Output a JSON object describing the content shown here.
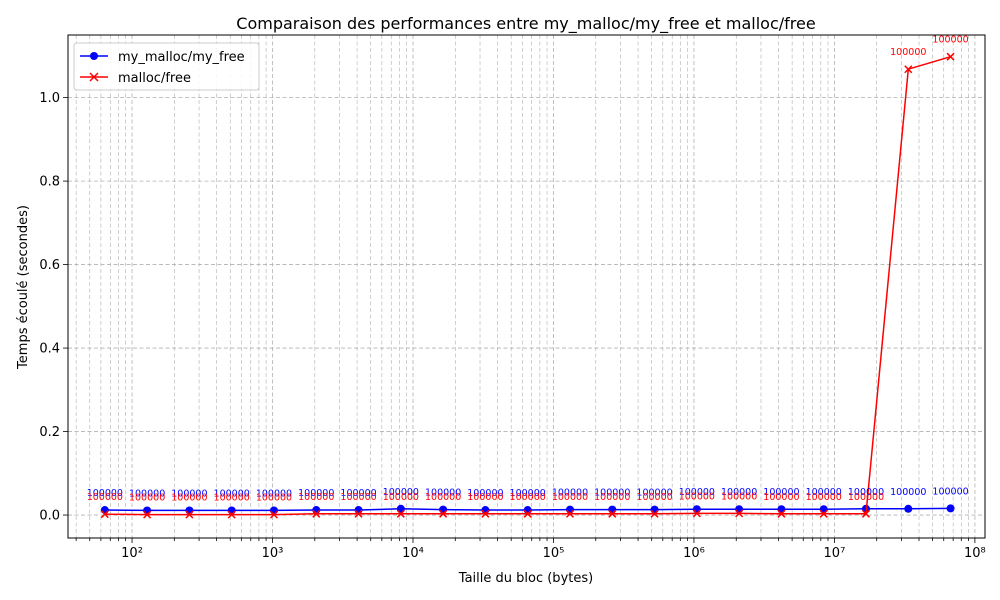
{
  "chart_data": {
    "type": "line",
    "title": "Comparaison des performances entre my_malloc/my_free et malloc/free",
    "xlabel": "Taille du bloc (bytes)",
    "ylabel": "Temps écoulé (secondes)",
    "xscale": "log",
    "xlim": [
      35,
      118000000
    ],
    "ylim": [
      -0.055,
      1.15
    ],
    "grid": "both (major and minor)",
    "legend_position": "upper-left",
    "x_tick_labels": [
      "10²",
      "10³",
      "10⁴",
      "10⁵",
      "10⁶",
      "10⁷",
      "10⁸"
    ],
    "y_tick_labels": [
      "0.0",
      "0.2",
      "0.4",
      "0.6",
      "0.8",
      "1.0"
    ],
    "x": [
      64,
      128,
      256,
      512,
      1024,
      2048,
      4096,
      8192,
      16384,
      32768,
      65536,
      131072,
      262144,
      524288,
      1048576,
      2097152,
      4194304,
      8388608,
      16777216,
      33554432,
      67108864
    ],
    "series": [
      {
        "name": "my_malloc/my_free",
        "color": "#0000ff",
        "marker": "circle",
        "values": [
          0.012,
          0.011,
          0.011,
          0.011,
          0.011,
          0.012,
          0.012,
          0.015,
          0.013,
          0.012,
          0.012,
          0.013,
          0.013,
          0.013,
          0.014,
          0.014,
          0.014,
          0.014,
          0.015,
          0.015,
          0.016
        ],
        "point_labels": [
          "100000",
          "100000",
          "100000",
          "100000",
          "100000",
          "100000",
          "100000",
          "100000",
          "100000",
          "100000",
          "100000",
          "100000",
          "100000",
          "100000",
          "100000",
          "100000",
          "100000",
          "100000",
          "100000",
          "100000",
          "100000"
        ]
      },
      {
        "name": "malloc/free",
        "color": "#ff0000",
        "marker": "x",
        "values": [
          0.002,
          0.001,
          0.001,
          0.001,
          0.001,
          0.003,
          0.003,
          0.003,
          0.003,
          0.003,
          0.003,
          0.003,
          0.003,
          0.003,
          0.004,
          0.004,
          0.003,
          0.003,
          0.003,
          1.068,
          1.098
        ],
        "point_labels": [
          "100000",
          "100000",
          "100000",
          "100000",
          "100000",
          "100000",
          "100000",
          "100000",
          "100000",
          "100000",
          "100000",
          "100000",
          "100000",
          "100000",
          "100000",
          "100000",
          "100000",
          "100000",
          "100000",
          "100000",
          "100000"
        ]
      }
    ]
  }
}
